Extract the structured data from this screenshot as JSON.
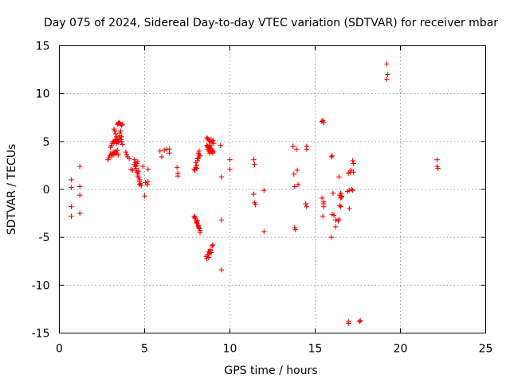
{
  "chart_data": {
    "type": "scatter",
    "title": "Day 075 of 2024, Sidereal Day-to-day VTEC variation (SDTVAR) for receiver mbar",
    "xlabel": "GPS time / hours",
    "ylabel": "SDTVAR / TECUs",
    "xlim": [
      0,
      25
    ],
    "ylim": [
      -15,
      15
    ],
    "xticks": [
      "0",
      "5",
      "10",
      "15",
      "20",
      "25"
    ],
    "yticks": [
      "15",
      "10",
      "5",
      "0",
      "-5",
      "-10",
      "-15"
    ],
    "grid": true,
    "marker": "plus",
    "color": "#ff0000",
    "series": [
      {
        "name": "SDTVAR",
        "x": [
          0.7,
          0.7,
          0.7,
          0.7,
          1.2,
          1.2,
          1.2,
          1.2,
          2.85,
          2.9,
          2.95,
          3.0,
          3.05,
          3.1,
          3.15,
          3.2,
          3.25,
          3.3,
          3.35,
          3.4,
          3.45,
          3.0,
          3.05,
          3.1,
          3.15,
          3.2,
          3.25,
          3.3,
          3.35,
          3.4,
          3.2,
          3.25,
          3.3,
          3.35,
          3.4,
          3.45,
          3.5,
          3.55,
          3.6,
          3.65,
          3.7,
          3.4,
          3.45,
          3.5,
          3.55,
          3.6,
          3.65,
          3.7,
          3.55,
          3.6,
          3.65,
          3.9,
          3.95,
          4.0,
          4.1,
          4.2,
          4.3,
          4.4,
          4.45,
          4.4,
          4.45,
          4.5,
          4.5,
          4.55,
          4.6,
          4.6,
          4.65,
          4.7,
          4.7,
          4.75,
          4.8,
          4.5,
          4.55,
          4.6,
          4.65,
          4.7,
          4.9,
          5.0,
          5.05,
          5.15,
          5.2,
          5.2,
          5.9,
          6.0,
          6.15,
          6.3,
          6.45,
          6.45,
          6.9,
          6.95,
          6.95,
          7.9,
          7.95,
          8.0,
          8.05,
          8.1,
          8.15,
          8.2,
          8.25,
          7.95,
          8.05,
          8.15,
          8.2,
          8.25,
          8.1,
          7.9,
          7.95,
          8.0,
          8.05,
          8.1,
          8.15,
          8.2,
          8.0,
          8.1,
          8.15,
          8.2,
          8.05,
          8.25,
          8.65,
          8.7,
          8.75,
          8.8,
          8.85,
          8.9,
          8.95,
          9.0,
          9.05,
          8.7,
          8.8,
          8.9,
          9.0,
          8.6,
          8.65,
          8.7,
          8.75,
          8.8,
          8.85,
          8.9,
          8.95,
          9.0,
          8.75,
          8.85,
          8.65,
          8.7,
          8.75,
          8.8,
          8.85,
          8.9,
          8.95,
          9.0,
          8.7,
          8.75,
          8.8,
          8.85,
          8.9,
          8.95,
          9.0,
          8.8,
          9.45,
          9.5,
          9.5,
          9.5,
          10.0,
          10.0,
          11.4,
          11.45,
          11.5,
          11.4,
          11.45,
          12.0,
          12.0,
          13.7,
          13.75,
          13.8,
          13.8,
          13.85,
          13.9,
          13.95,
          14.0,
          14.45,
          14.5,
          14.5,
          14.5,
          15.4,
          15.45,
          15.5,
          15.4,
          15.45,
          15.5,
          15.5,
          15.5,
          15.95,
          16.0,
          16.05,
          16.1,
          16.0,
          15.95,
          16.2,
          16.2,
          16.35,
          16.4,
          16.45,
          16.5,
          16.55,
          16.5,
          16.45,
          16.5,
          16.55,
          16.4,
          16.9,
          16.95,
          17.0,
          17.05,
          17.1,
          17.15,
          17.2,
          17.25,
          17.0,
          17.2,
          17.25,
          16.95,
          16.95,
          17.6,
          17.65,
          19.2,
          19.25,
          19.2,
          22.15,
          22.15,
          22.2
        ],
        "y": [
          1.0,
          0.2,
          -1.8,
          -2.8,
          2.4,
          0.3,
          -0.6,
          -2.5,
          3.1,
          3.3,
          3.5,
          3.7,
          3.5,
          3.8,
          3.6,
          3.9,
          3.7,
          4.0,
          3.8,
          4.1,
          3.6,
          4.4,
          4.6,
          4.8,
          5.0,
          4.9,
          5.1,
          5.2,
          4.8,
          5.0,
          6.3,
          6.1,
          5.8,
          5.5,
          5.2,
          4.9,
          5.3,
          5.6,
          5.2,
          5.0,
          4.7,
          6.8,
          6.9,
          7.0,
          6.9,
          6.8,
          6.7,
          6.8,
          5.9,
          6.1,
          5.5,
          3.9,
          3.6,
          3.4,
          3.2,
          2.1,
          2.0,
          3.1,
          2.8,
          2.6,
          2.4,
          2.2,
          2.0,
          1.8,
          1.6,
          1.4,
          1.2,
          1.0,
          0.8,
          0.6,
          0.4,
          2.5,
          2.7,
          2.9,
          1.9,
          0.5,
          2.4,
          -0.7,
          0.7,
          0.5,
          2.1,
          0.8,
          4.0,
          3.4,
          4.1,
          4.2,
          3.8,
          4.2,
          2.3,
          1.7,
          1.4,
          -2.8,
          -3.0,
          -3.2,
          -3.4,
          -3.6,
          -3.8,
          -4.0,
          -4.3,
          -2.9,
          -3.5,
          -3.9,
          -4.1,
          -4.5,
          -3.3,
          2.1,
          2.0,
          2.3,
          2.5,
          3.0,
          3.3,
          3.6,
          2.8,
          3.2,
          3.8,
          4.0,
          2.2,
          3.5,
          5.4,
          5.3,
          5.2,
          5.1,
          5.0,
          5.2,
          4.9,
          5.1,
          4.8,
          4.2,
          4.0,
          3.9,
          3.8,
          -7.0,
          -7.2,
          -6.8,
          -7.1,
          -6.7,
          -6.3,
          -6.6,
          -5.9,
          -5.8,
          -6.5,
          -6.4,
          4.6,
          4.5,
          4.4,
          4.3,
          4.2,
          4.1,
          4.0,
          3.9,
          4.4,
          4.0,
          3.8,
          4.5,
          4.3,
          4.1,
          4.0,
          4.6,
          4.6,
          1.3,
          -3.2,
          -8.4,
          3.1,
          2.1,
          3.1,
          2.6,
          -1.6,
          -0.5,
          -1.4,
          -0.1,
          -4.4,
          4.5,
          1.6,
          0.3,
          -4.0,
          -4.2,
          4.2,
          2.0,
          0.5,
          -1.5,
          -1.8,
          4.2,
          4.5,
          -0.9,
          -2.8,
          -1.5,
          7.1,
          7.2,
          7.0,
          -1.3,
          -1.8,
          3.4,
          3.5,
          -0.4,
          -2.7,
          -2.6,
          -5.0,
          -3.2,
          -3.9,
          -3.3,
          -3.1,
          -0.6,
          -0.4,
          -0.8,
          -1.8,
          -1.7,
          -0.9,
          -0.7,
          1.3,
          -0.2,
          1.7,
          -0.1,
          1.8,
          2.0,
          0.0,
          3.0,
          2.7,
          -2.0,
          -0.1,
          1.8,
          -13.8,
          -14.0,
          -13.8,
          -13.7,
          13.1,
          12.0,
          11.5,
          3.1,
          2.4,
          2.2
        ]
      }
    ]
  }
}
